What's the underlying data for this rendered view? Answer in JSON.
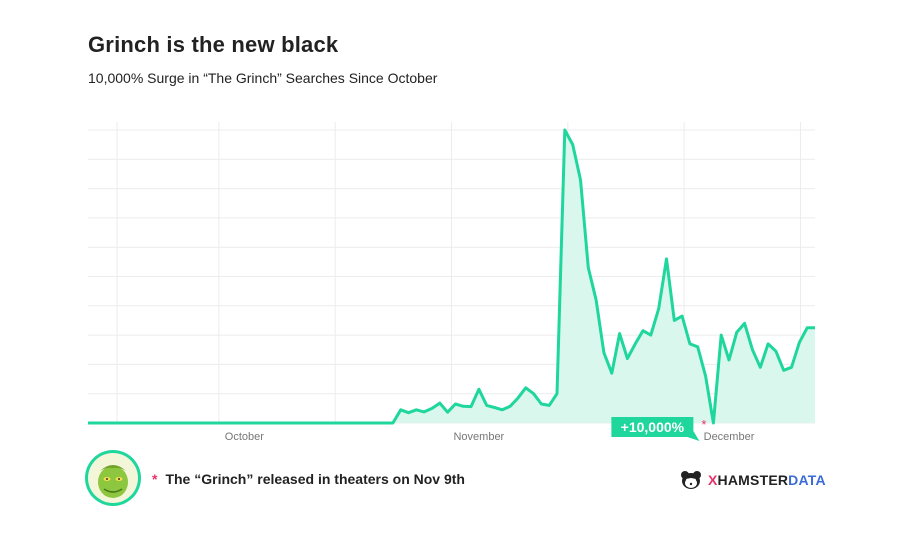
{
  "header": {
    "title": "Grinch is the new black",
    "subtitle": "10,000% Surge in “The Grinch” Searches Since October"
  },
  "footer": {
    "asterisk": "*",
    "note": "The “Grinch” released in theaters on Nov 9th",
    "avatar_icon": "grinch-avatar-icon",
    "brand_icon": "hamster-logo-icon",
    "brand_x": "X",
    "brand_hamster": "HAMSTER",
    "brand_data": "DATA"
  },
  "colors": {
    "line": "#1fd69d",
    "fill": "#d9f7ec",
    "grid": "#ececec",
    "annotation_bg": "#1fd69d",
    "asterisk": "#e8336a",
    "brand_data": "#3a6bd6"
  },
  "chart_data": {
    "type": "area",
    "xlabel": "",
    "ylabel": "",
    "x_tick_labels": [
      "October",
      "November",
      "December"
    ],
    "grid": true,
    "ylim": [
      0,
      10000
    ],
    "annotation": {
      "label": "+10,000%",
      "marker": "*",
      "at_index": 80
    },
    "values": [
      0,
      0,
      0,
      0,
      0,
      0,
      0,
      0,
      0,
      0,
      0,
      0,
      0,
      0,
      0,
      0,
      0,
      0,
      0,
      0,
      0,
      0,
      0,
      0,
      0,
      0,
      0,
      0,
      0,
      0,
      0,
      0,
      0,
      0,
      0,
      0,
      0,
      0,
      0,
      0,
      450,
      350,
      450,
      380,
      500,
      680,
      370,
      650,
      570,
      560,
      1150,
      600,
      530,
      450,
      570,
      850,
      1200,
      1000,
      650,
      600,
      1000,
      10000,
      9500,
      8300,
      5300,
      4200,
      2400,
      1700,
      3050,
      2200,
      2700,
      3150,
      3000,
      3900,
      5600,
      3500,
      3650,
      2700,
      2600,
      1600,
      0,
      3000,
      2150,
      3100,
      3400,
      2500,
      1900,
      2700,
      2450,
      1800,
      1900,
      2750,
      3250,
      3250
    ]
  }
}
